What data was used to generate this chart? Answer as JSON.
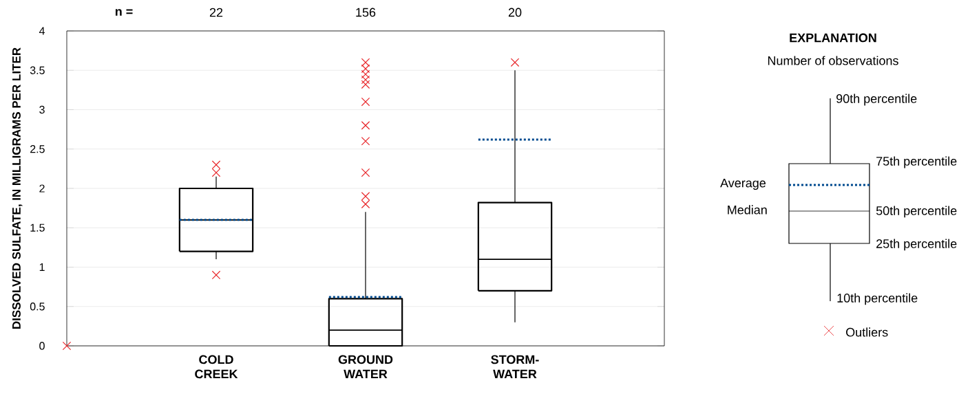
{
  "chart_data": {
    "type": "box",
    "categories": [
      null,
      "COLD CREEK",
      "GROUND WATER",
      "STORM-WATER",
      null
    ],
    "boxes": [
      null,
      {
        "low": 1.1,
        "q1": 1.2,
        "median": 1.6,
        "q3": 2.0,
        "high": 2.15,
        "mean": 1.6,
        "outliers": [
          2.3,
          2.2,
          0.9
        ]
      },
      {
        "low": 0,
        "q1": 0,
        "median": 0.2,
        "q3": 0.6,
        "high": 1.7,
        "mean": 0.62,
        "outliers": [
          3.6,
          3.52,
          3.45,
          3.38,
          3.32,
          3.1,
          2.8,
          2.6,
          2.2,
          1.9,
          1.8
        ]
      },
      {
        "low": 0.3,
        "q1": 0.7,
        "median": 1.1,
        "q3": 1.82,
        "high": 3.5,
        "mean": 2.62,
        "outliers": [
          3.6
        ]
      },
      null
    ],
    "ylabel": "DISSOLVED SULFATE, IN MILLIGRAMS PER LITER",
    "ylim": [
      0,
      4
    ],
    "yticks": [
      0,
      0.5,
      1,
      1.5,
      2,
      2.5,
      3,
      3.5,
      4
    ],
    "series": [
      {
        "type": "scatter",
        "x": [
          null
        ],
        "values": [
          0
        ],
        "color": "#e8262a"
      }
    ],
    "grid": "y",
    "legend_title": "EXPLANATION",
    "annotations": [
      "n =",
      "22",
      "156",
      "20",
      "Number of observations",
      "90th percentile",
      "75th percentile",
      "Average",
      "Median",
      "50th percentile",
      "25th percentile",
      "10th percentile",
      "Outliers"
    ]
  }
}
